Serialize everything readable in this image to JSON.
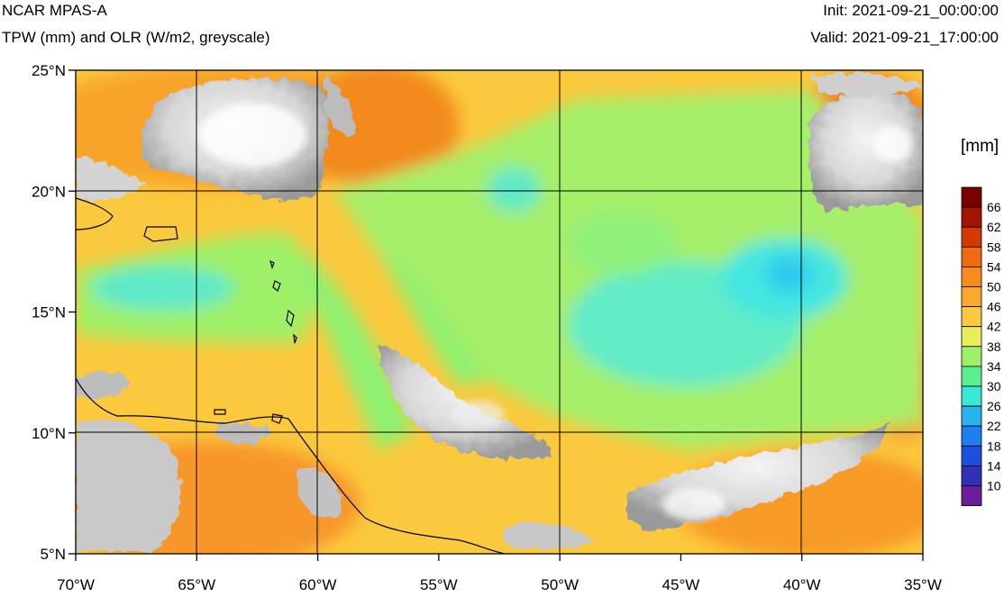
{
  "header": {
    "model": "NCAR MPAS-A",
    "fields": "TPW (mm) and OLR (W/m2, greyscale)",
    "init": "Init: 2021-09-21_00:00:00",
    "valid": "Valid: 2021-09-21_17:00:00"
  },
  "map": {
    "lon_range": [
      -70,
      -35
    ],
    "lat_range": [
      5,
      25
    ],
    "lon_ticks": [
      {
        "value": -70,
        "label": "70°W"
      },
      {
        "value": -65,
        "label": "65°W"
      },
      {
        "value": -60,
        "label": "60°W"
      },
      {
        "value": -55,
        "label": "55°W"
      },
      {
        "value": -50,
        "label": "50°W"
      },
      {
        "value": -45,
        "label": "45°W"
      },
      {
        "value": -40,
        "label": "40°W"
      },
      {
        "value": -35,
        "label": "35°W"
      }
    ],
    "lat_ticks": [
      {
        "value": 25,
        "label": "25°N"
      },
      {
        "value": 20,
        "label": "20°N"
      },
      {
        "value": 15,
        "label": "15°N"
      },
      {
        "value": 10,
        "label": "10°N"
      },
      {
        "value": 5,
        "label": "5°N"
      }
    ],
    "grid_lons": [
      -65,
      -60,
      -50,
      -40
    ],
    "grid_lats": [
      20,
      10
    ]
  },
  "colorbar": {
    "units": "[mm]",
    "levels": [
      {
        "label": "66",
        "color": "#7a0000"
      },
      {
        "label": "62",
        "color": "#a11500"
      },
      {
        "label": "58",
        "color": "#d23a00"
      },
      {
        "label": "54",
        "color": "#f26a0f"
      },
      {
        "label": "50",
        "color": "#f78b1c"
      },
      {
        "label": "46",
        "color": "#fba92c"
      },
      {
        "label": "42",
        "color": "#fbc93d"
      },
      {
        "label": "38",
        "color": "#e8ee57"
      },
      {
        "label": "34",
        "color": "#9ef068"
      },
      {
        "label": "30",
        "color": "#5cef8f"
      },
      {
        "label": "26",
        "color": "#38e7d6"
      },
      {
        "label": "22",
        "color": "#2ab2f0"
      },
      {
        "label": "18",
        "color": "#1f7ff0"
      },
      {
        "label": "14",
        "color": "#1c4fe0"
      },
      {
        "label": "10",
        "color": "#3131b8"
      },
      {
        "label": "",
        "color": "#6a1e9a"
      }
    ]
  }
}
